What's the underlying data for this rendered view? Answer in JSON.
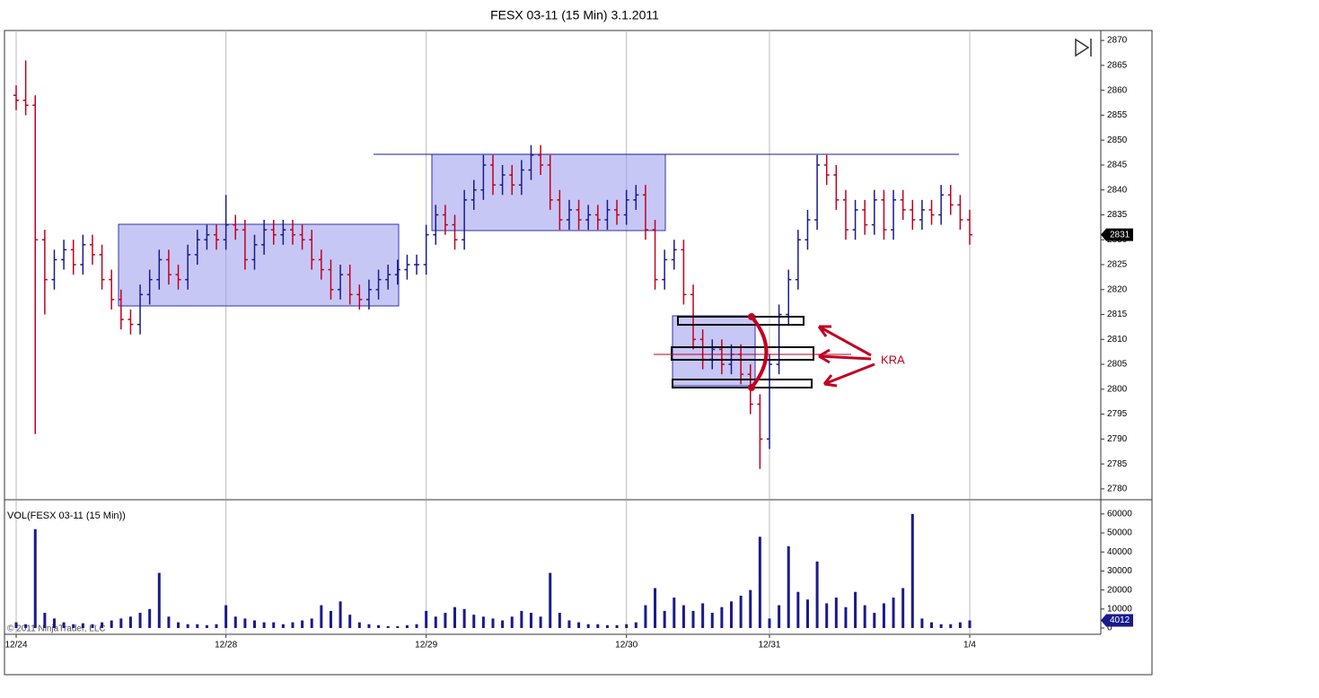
{
  "chart_data": {
    "type": "ohlc",
    "title": "FESX 03-11 (15 Min)  3.1.2011",
    "volume_label": "VOL(FESX 03-11 (15 Min))",
    "copyright": "© 2011 NinjaTrader, LLC",
    "annotations": [
      "KRA"
    ],
    "categories": [
      "12/24",
      null,
      null,
      null,
      null,
      null,
      null,
      null,
      null,
      null,
      null,
      null,
      null,
      null,
      null,
      null,
      null,
      null,
      null,
      null,
      null,
      null,
      "12/28",
      null,
      null,
      null,
      null,
      null,
      null,
      null,
      null,
      null,
      null,
      null,
      null,
      null,
      null,
      null,
      null,
      null,
      null,
      null,
      null,
      "12/29",
      null,
      null,
      null,
      null,
      null,
      null,
      null,
      null,
      null,
      null,
      null,
      null,
      null,
      null,
      null,
      null,
      null,
      null,
      null,
      null,
      "12/30",
      null,
      null,
      null,
      null,
      null,
      null,
      null,
      null,
      null,
      null,
      null,
      null,
      null,
      null,
      "12/31",
      null,
      null,
      null,
      null,
      null,
      null,
      null,
      null,
      null,
      null,
      null,
      null,
      null,
      null,
      null,
      null,
      null,
      null,
      null,
      null,
      "1/4"
    ],
    "open": [
      2859,
      2858,
      2857,
      2830,
      2822,
      2826,
      2828,
      2825,
      2829,
      2827,
      2822,
      2818,
      2814,
      2813,
      2819,
      2822,
      2826,
      2823,
      2822,
      2827,
      2830,
      2831,
      2830,
      2833,
      2832,
      2826,
      2829,
      2832,
      2831,
      2832,
      2831,
      2830,
      2826,
      2824,
      2820,
      2823,
      2819,
      2818,
      2820,
      2822,
      2823,
      2824,
      2825,
      2825,
      2831,
      2835,
      2833,
      2830,
      2838,
      2840,
      2845,
      2841,
      2843,
      2841,
      2844,
      2847,
      2845,
      2838,
      2834,
      2836,
      2834,
      2835,
      2834,
      2836,
      2835,
      2838,
      2839,
      2832,
      2822,
      2826,
      2828,
      2819,
      2810,
      2806,
      2808,
      2805,
      2807,
      2803,
      2797,
      2790,
      2805,
      2815,
      2822,
      2830,
      2834,
      2845,
      2843,
      2838,
      2832,
      2836,
      2833,
      2838,
      2832,
      2838,
      2836,
      2834,
      2836,
      2835,
      2839,
      2837,
      2834
    ],
    "high": [
      2861,
      2866,
      2859,
      2832,
      2828,
      2830,
      2830,
      2831,
      2831,
      2829,
      2824,
      2820,
      2816,
      2821,
      2824,
      2828,
      2828,
      2825,
      2829,
      2832,
      2833,
      2833,
      2839,
      2835,
      2834,
      2831,
      2834,
      2834,
      2834,
      2834,
      2833,
      2832,
      2828,
      2826,
      2825,
      2825,
      2821,
      2822,
      2824,
      2825,
      2826,
      2827,
      2827,
      2833,
      2837,
      2837,
      2835,
      2840,
      2842,
      2847,
      2847,
      2845,
      2845,
      2846,
      2849,
      2849,
      2847,
      2840,
      2838,
      2838,
      2837,
      2837,
      2838,
      2838,
      2840,
      2841,
      2841,
      2834,
      2828,
      2830,
      2830,
      2821,
      2812,
      2810,
      2810,
      2809,
      2809,
      2805,
      2799,
      2807,
      2817,
      2824,
      2832,
      2836,
      2847,
      2847,
      2845,
      2840,
      2838,
      2838,
      2840,
      2840,
      2840,
      2840,
      2838,
      2838,
      2838,
      2841,
      2841,
      2839,
      2836
    ],
    "low": [
      2856,
      2855,
      2791,
      2815,
      2820,
      2824,
      2823,
      2823,
      2825,
      2820,
      2816,
      2812,
      2811,
      2811,
      2817,
      2820,
      2821,
      2820,
      2820,
      2825,
      2828,
      2828,
      2828,
      2830,
      2824,
      2824,
      2827,
      2829,
      2829,
      2829,
      2828,
      2824,
      2822,
      2818,
      2818,
      2817,
      2816,
      2816,
      2818,
      2820,
      2821,
      2822,
      2823,
      2823,
      2829,
      2831,
      2828,
      2828,
      2836,
      2838,
      2839,
      2839,
      2839,
      2839,
      2842,
      2843,
      2836,
      2832,
      2832,
      2832,
      2832,
      2832,
      2832,
      2833,
      2833,
      2836,
      2830,
      2820,
      2820,
      2824,
      2817,
      2808,
      2804,
      2804,
      2803,
      2803,
      2801,
      2795,
      2784,
      2788,
      2803,
      2813,
      2820,
      2828,
      2832,
      2841,
      2836,
      2830,
      2830,
      2831,
      2831,
      2830,
      2830,
      2834,
      2832,
      2832,
      2833,
      2833,
      2835,
      2832,
      2829
    ],
    "close": [
      2858,
      2857,
      2830,
      2822,
      2826,
      2828,
      2825,
      2829,
      2827,
      2822,
      2818,
      2814,
      2813,
      2819,
      2822,
      2826,
      2823,
      2822,
      2827,
      2830,
      2831,
      2830,
      2833,
      2832,
      2826,
      2829,
      2832,
      2831,
      2832,
      2831,
      2830,
      2826,
      2824,
      2820,
      2823,
      2819,
      2818,
      2820,
      2822,
      2823,
      2824,
      2825,
      2825,
      2831,
      2835,
      2833,
      2830,
      2838,
      2840,
      2845,
      2841,
      2843,
      2841,
      2844,
      2847,
      2845,
      2838,
      2834,
      2836,
      2834,
      2835,
      2834,
      2836,
      2835,
      2838,
      2839,
      2832,
      2822,
      2826,
      2828,
      2819,
      2810,
      2806,
      2808,
      2805,
      2807,
      2803,
      2797,
      2790,
      2805,
      2815,
      2822,
      2830,
      2834,
      2845,
      2843,
      2838,
      2832,
      2836,
      2833,
      2838,
      2832,
      2838,
      2836,
      2834,
      2836,
      2835,
      2839,
      2837,
      2834,
      2831
    ],
    "volume": [
      3000,
      2000,
      52000,
      8000,
      5000,
      3000,
      2000,
      2500,
      2000,
      3000,
      4000,
      5000,
      6000,
      8000,
      10000,
      29000,
      6000,
      3000,
      2000,
      2000,
      1500,
      2000,
      12000,
      6000,
      5000,
      4000,
      3000,
      3000,
      2000,
      3000,
      4000,
      5000,
      12000,
      9000,
      14000,
      7000,
      3000,
      2000,
      1500,
      1000,
      1000,
      1500,
      2000,
      9000,
      6000,
      8000,
      11000,
      10000,
      7000,
      6000,
      5000,
      4000,
      6000,
      9000,
      8000,
      6000,
      29000,
      8000,
      4000,
      3000,
      2000,
      2000,
      1500,
      1500,
      2000,
      3000,
      12000,
      21000,
      9000,
      16000,
      12000,
      9000,
      13000,
      8000,
      11000,
      14000,
      17000,
      20000,
      48000,
      5000,
      12000,
      43000,
      19000,
      15000,
      35000,
      13000,
      16000,
      11000,
      19000,
      12000,
      8000,
      13000,
      16000,
      21000,
      60000,
      5000,
      3000,
      2000,
      2000,
      3000,
      4012
    ],
    "up_color": "#1a1a8c",
    "down_color": "#c00020",
    "volume_color": "#1a1a8c",
    "ylim": [
      2778,
      2872
    ],
    "yticks": [
      2780,
      2785,
      2790,
      2795,
      2800,
      2805,
      2810,
      2815,
      2820,
      2825,
      2830,
      2835,
      2840,
      2845,
      2850,
      2855,
      2860,
      2865,
      2870
    ],
    "y2lim": [
      0,
      67000
    ],
    "y2ticks": [
      0,
      10000,
      20000,
      30000,
      40000,
      50000,
      60000
    ],
    "xgrid": true
  }
}
